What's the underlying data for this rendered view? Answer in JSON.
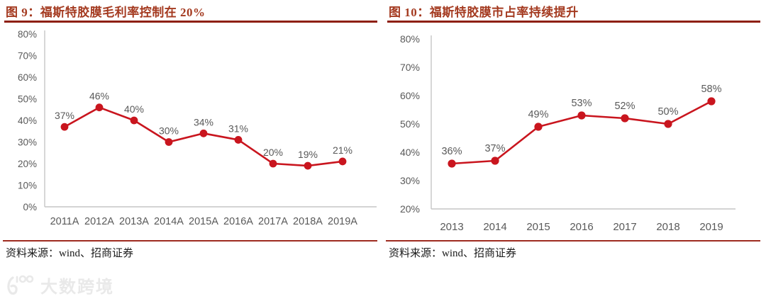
{
  "watermark": {
    "logo_text": "100",
    "brand_text": "大数跨境"
  },
  "colors": {
    "title": "#A43A20",
    "title_rule": "#8E1F10",
    "separator": "#9E2B20",
    "line": "#C9151E",
    "axis": "#C6C6C6",
    "label": "#595959",
    "source_text": "#1a1a1a",
    "watermark": "#E9E9E9"
  },
  "chart_data": [
    {
      "id": "figure9",
      "type": "line",
      "title": "图 9：福斯特胶膜毛利率控制在 20%",
      "categories": [
        "2011A",
        "2012A",
        "2013A",
        "2014A",
        "2015A",
        "2016A",
        "2017A",
        "2018A",
        "2019A"
      ],
      "values": [
        37,
        46,
        40,
        30,
        34,
        31,
        20,
        19,
        21
      ],
      "point_labels": [
        "37%",
        "46%",
        "40%",
        "30%",
        "34%",
        "31%",
        "20%",
        "19%",
        "21%"
      ],
      "ylim": [
        0,
        80
      ],
      "yticks": [
        "0%",
        "10%",
        "20%",
        "30%",
        "40%",
        "50%",
        "60%",
        "70%",
        "80%"
      ],
      "grid": false,
      "legend_position": "none",
      "source": "资料来源：wind、招商证券"
    },
    {
      "id": "figure10",
      "type": "line",
      "title": "图 10：福斯特胶膜市占率持续提升",
      "categories": [
        "2013",
        "2014",
        "2015",
        "2016",
        "2017",
        "2018",
        "2019"
      ],
      "values": [
        36,
        37,
        49,
        53,
        52,
        50,
        58
      ],
      "point_labels": [
        "36%",
        "37%",
        "49%",
        "53%",
        "52%",
        "50%",
        "58%"
      ],
      "ylim": [
        20,
        80
      ],
      "yticks": [
        "20%",
        "30%",
        "40%",
        "50%",
        "60%",
        "70%",
        "80%"
      ],
      "grid": false,
      "legend_position": "none",
      "source": "资料来源：wind、招商证券"
    }
  ]
}
